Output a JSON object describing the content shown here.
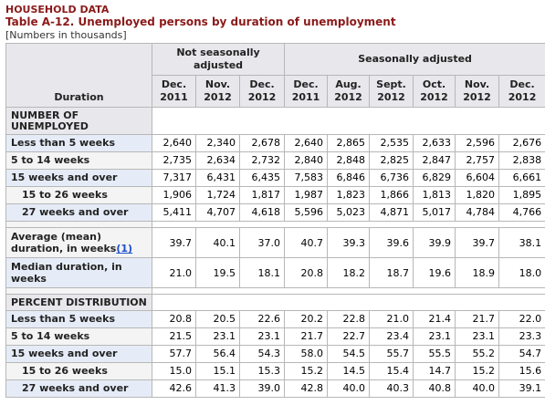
{
  "header": {
    "section": "HOUSEHOLD DATA",
    "title": "Table A-12. Unemployed persons by duration of unemployment",
    "subtitle": "[Numbers in thousands]"
  },
  "table": {
    "duration_header": "Duration",
    "group_nsa": "Not seasonally adjusted",
    "group_sa": "Seasonally adjusted",
    "months": [
      {
        "m": "Dec.",
        "y": "2011"
      },
      {
        "m": "Nov.",
        "y": "2012"
      },
      {
        "m": "Dec.",
        "y": "2012"
      },
      {
        "m": "Dec.",
        "y": "2011"
      },
      {
        "m": "Aug.",
        "y": "2012"
      },
      {
        "m": "Sept.",
        "y": "2012"
      },
      {
        "m": "Oct.",
        "y": "2012"
      },
      {
        "m": "Nov.",
        "y": "2012"
      },
      {
        "m": "Dec.",
        "y": "2012"
      }
    ],
    "section_number": "NUMBER OF UNEMPLOYED",
    "section_percent": "PERCENT DISTRIBUTION",
    "rows_number": [
      {
        "label": "Less than 5 weeks",
        "values": [
          "2,640",
          "2,340",
          "2,678",
          "2,640",
          "2,865",
          "2,535",
          "2,633",
          "2,596",
          "2,676"
        ]
      },
      {
        "label": "5 to 14 weeks",
        "values": [
          "2,735",
          "2,634",
          "2,732",
          "2,840",
          "2,848",
          "2,825",
          "2,847",
          "2,757",
          "2,838"
        ]
      },
      {
        "label": "15 weeks and over",
        "values": [
          "7,317",
          "6,431",
          "6,435",
          "7,583",
          "6,846",
          "6,736",
          "6,829",
          "6,604",
          "6,661"
        ]
      },
      {
        "label": "15 to 26 weeks",
        "values": [
          "1,906",
          "1,724",
          "1,817",
          "1,987",
          "1,823",
          "1,866",
          "1,813",
          "1,820",
          "1,895"
        ]
      },
      {
        "label": "27 weeks and over",
        "values": [
          "5,411",
          "4,707",
          "4,618",
          "5,596",
          "5,023",
          "4,871",
          "5,017",
          "4,784",
          "4,766"
        ]
      }
    ],
    "mean_label": "Average (mean) duration, in weeks",
    "mean_footnote": "(1)",
    "mean_values": [
      "39.7",
      "40.1",
      "37.0",
      "40.7",
      "39.3",
      "39.6",
      "39.9",
      "39.7",
      "38.1"
    ],
    "median_label": "Median duration, in weeks",
    "median_values": [
      "21.0",
      "19.5",
      "18.1",
      "20.8",
      "18.2",
      "18.7",
      "19.6",
      "18.9",
      "18.0"
    ],
    "rows_percent": [
      {
        "label": "Less than 5 weeks",
        "values": [
          "20.8",
          "20.5",
          "22.6",
          "20.2",
          "22.8",
          "21.0",
          "21.4",
          "21.7",
          "22.0"
        ]
      },
      {
        "label": "5 to 14 weeks",
        "values": [
          "21.5",
          "23.1",
          "23.1",
          "21.7",
          "22.7",
          "23.4",
          "23.1",
          "23.1",
          "23.3"
        ]
      },
      {
        "label": "15 weeks and over",
        "values": [
          "57.7",
          "56.4",
          "54.3",
          "58.0",
          "54.5",
          "55.7",
          "55.5",
          "55.2",
          "54.7"
        ]
      },
      {
        "label": "15 to 26 weeks",
        "values": [
          "15.0",
          "15.1",
          "15.3",
          "15.2",
          "14.5",
          "15.4",
          "14.7",
          "15.2",
          "15.6"
        ]
      },
      {
        "label": "27 weeks and over",
        "values": [
          "42.6",
          "41.3",
          "39.0",
          "42.8",
          "40.0",
          "40.3",
          "40.8",
          "40.0",
          "39.1"
        ]
      }
    ]
  }
}
